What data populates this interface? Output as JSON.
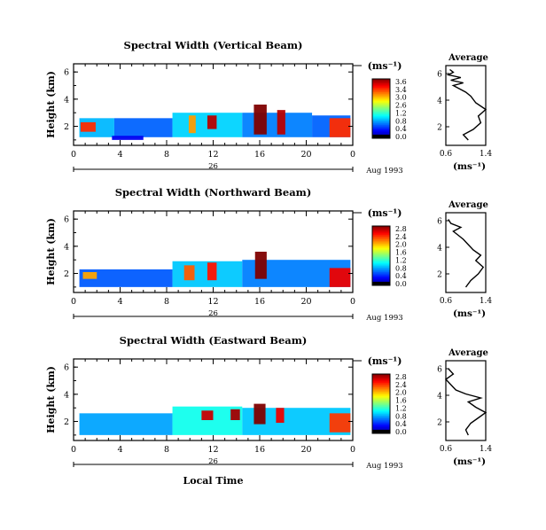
{
  "chart_data": [
    {
      "type": "heatmap",
      "title": "Spectral Width (Vertical Beam)",
      "ylabel": "Height (km)",
      "xlabel": "",
      "x_ticks": [
        "0",
        "4",
        "8",
        "12",
        "16",
        "20",
        "0"
      ],
      "xlim": [
        0,
        24
      ],
      "ylim": [
        0.6,
        6.6
      ],
      "y_ticks": [
        "2",
        "4",
        "6"
      ],
      "date_sub": "26",
      "date_label": "Aug 1993",
      "colorbar": {
        "unit": "(ms⁻¹)",
        "ticks": [
          "3.6",
          "3.4",
          "3.0",
          "2.6",
          "1.2",
          "0.8",
          "0.4",
          "0.0"
        ],
        "range": [
          0.0,
          3.6
        ]
      },
      "cells": [
        {
          "x0": 0.5,
          "x1": 3.5,
          "y0": 1.2,
          "y1": 2.6,
          "v": 1.1
        },
        {
          "x0": 3.5,
          "x1": 8.5,
          "y0": 1.2,
          "y1": 2.6,
          "v": 0.8
        },
        {
          "x0": 8.5,
          "x1": 14.5,
          "y0": 1.2,
          "y1": 3.0,
          "v": 1.2
        },
        {
          "x0": 14.5,
          "x1": 20.5,
          "y0": 1.2,
          "y1": 3.0,
          "v": 0.9
        },
        {
          "x0": 20.5,
          "x1": 23.8,
          "y0": 1.2,
          "y1": 2.8,
          "v": 0.8
        },
        {
          "x0": 0.6,
          "x1": 1.9,
          "y0": 1.6,
          "y1": 2.3,
          "v": 3.0
        },
        {
          "x0": 9.9,
          "x1": 10.5,
          "y0": 1.5,
          "y1": 2.8,
          "v": 2.6
        },
        {
          "x0": 11.5,
          "x1": 12.3,
          "y0": 1.8,
          "y1": 2.8,
          "v": 3.4
        },
        {
          "x0": 15.5,
          "x1": 16.6,
          "y0": 1.4,
          "y1": 3.6,
          "v": 3.6
        },
        {
          "x0": 17.5,
          "x1": 18.2,
          "y0": 1.4,
          "y1": 3.2,
          "v": 3.4
        },
        {
          "x0": 22.0,
          "x1": 23.8,
          "y0": 1.2,
          "y1": 2.6,
          "v": 3.0
        },
        {
          "x0": 3.3,
          "x1": 6.0,
          "y0": 1.0,
          "y1": 1.3,
          "v": 0.4
        }
      ],
      "profile": {
        "title": "Average",
        "xlabel": "(ms⁻¹)",
        "x_ticks": [
          "0.6",
          "1.4"
        ],
        "xlim": [
          0.6,
          1.4
        ],
        "y_ticks": [
          "2",
          "4",
          "6"
        ],
        "ylim": [
          0.6,
          6.6
        ],
        "series": [
          {
            "x": [
              1.05,
              0.95,
              1.15,
              1.3,
              1.25,
              1.4,
              1.2,
              1.1,
              1.0,
              0.85,
              0.75,
              0.95,
              0.7,
              0.9,
              0.65,
              0.75,
              0.68
            ],
            "y": [
              1.0,
              1.4,
              1.8,
              2.3,
              2.8,
              3.3,
              3.8,
              4.3,
              4.6,
              4.9,
              5.1,
              5.3,
              5.5,
              5.7,
              5.9,
              6.1,
              6.3
            ]
          }
        ]
      }
    },
    {
      "type": "heatmap",
      "title": "Spectral Width (Northward Beam)",
      "ylabel": "Height (km)",
      "xlabel": "",
      "x_ticks": [
        "0",
        "4",
        "8",
        "12",
        "16",
        "20",
        "0"
      ],
      "xlim": [
        0,
        24
      ],
      "ylim": [
        0.6,
        6.6
      ],
      "y_ticks": [
        "2",
        "4",
        "6"
      ],
      "date_sub": "26",
      "date_label": "Aug 1993",
      "colorbar": {
        "unit": "(ms⁻¹)",
        "ticks": [
          "2.8",
          "2.4",
          "2.0",
          "1.6",
          "1.2",
          "0.8",
          "0.4",
          "0.0"
        ],
        "range": [
          0.0,
          2.8
        ]
      },
      "cells": [
        {
          "x0": 0.5,
          "x1": 8.5,
          "y0": 1.0,
          "y1": 2.3,
          "v": 0.6
        },
        {
          "x0": 8.5,
          "x1": 14.5,
          "y0": 1.0,
          "y1": 2.9,
          "v": 0.9
        },
        {
          "x0": 14.5,
          "x1": 23.8,
          "y0": 1.0,
          "y1": 3.0,
          "v": 0.7
        },
        {
          "x0": 9.5,
          "x1": 10.4,
          "y0": 1.5,
          "y1": 2.6,
          "v": 2.2
        },
        {
          "x0": 11.5,
          "x1": 12.3,
          "y0": 1.5,
          "y1": 2.8,
          "v": 2.4
        },
        {
          "x0": 15.6,
          "x1": 16.6,
          "y0": 1.6,
          "y1": 3.6,
          "v": 2.8
        },
        {
          "x0": 22.0,
          "x1": 23.8,
          "y0": 1.0,
          "y1": 2.4,
          "v": 2.5
        },
        {
          "x0": 0.8,
          "x1": 2.0,
          "y0": 1.6,
          "y1": 2.1,
          "v": 2.0
        }
      ],
      "profile": {
        "title": "Average",
        "xlabel": "(ms⁻¹)",
        "x_ticks": [
          "0.6",
          "1.4"
        ],
        "xlim": [
          0.6,
          1.4
        ],
        "y_ticks": [
          "2",
          "4",
          "6"
        ],
        "ylim": [
          0.6,
          6.6
        ],
        "series": [
          {
            "x": [
              1.0,
              1.1,
              1.25,
              1.35,
              1.2,
              1.3,
              1.15,
              1.05,
              0.95,
              0.85,
              0.75,
              0.9,
              0.7,
              0.65
            ],
            "y": [
              1.0,
              1.5,
              2.0,
              2.5,
              3.0,
              3.4,
              3.8,
              4.2,
              4.6,
              4.9,
              5.2,
              5.5,
              5.8,
              6.1
            ]
          }
        ]
      }
    },
    {
      "type": "heatmap",
      "title": "Spectral Width (Eastward Beam)",
      "ylabel": "Height (km)",
      "xlabel": "Local Time",
      "x_ticks": [
        "0",
        "4",
        "8",
        "12",
        "16",
        "20",
        "0"
      ],
      "xlim": [
        0,
        24
      ],
      "ylim": [
        0.6,
        6.6
      ],
      "y_ticks": [
        "2",
        "4",
        "6"
      ],
      "date_sub": "26",
      "date_label": "Aug 1993",
      "colorbar": {
        "unit": "(ms⁻¹)",
        "ticks": [
          "2.8",
          "2.4",
          "2.0",
          "1.6",
          "1.2",
          "0.8",
          "0.4",
          "0.0"
        ],
        "range": [
          0.0,
          2.8
        ]
      },
      "cells": [
        {
          "x0": 0.5,
          "x1": 8.5,
          "y0": 1.0,
          "y1": 2.6,
          "v": 0.8
        },
        {
          "x0": 8.5,
          "x1": 14.5,
          "y0": 1.0,
          "y1": 3.1,
          "v": 1.1
        },
        {
          "x0": 14.5,
          "x1": 23.8,
          "y0": 1.0,
          "y1": 3.0,
          "v": 0.9
        },
        {
          "x0": 11.0,
          "x1": 12.0,
          "y0": 2.1,
          "y1": 2.8,
          "v": 2.6
        },
        {
          "x0": 13.5,
          "x1": 14.3,
          "y0": 2.1,
          "y1": 2.9,
          "v": 2.7
        },
        {
          "x0": 15.5,
          "x1": 16.5,
          "y0": 1.8,
          "y1": 3.3,
          "v": 2.8
        },
        {
          "x0": 17.4,
          "x1": 18.1,
          "y0": 1.9,
          "y1": 3.0,
          "v": 2.5
        },
        {
          "x0": 22.0,
          "x1": 23.8,
          "y0": 1.2,
          "y1": 2.6,
          "v": 2.3
        }
      ],
      "profile": {
        "title": "Average",
        "xlabel": "(ms⁻¹)",
        "x_ticks": [
          "0.6",
          "1.4"
        ],
        "xlim": [
          0.6,
          1.4
        ],
        "y_ticks": [
          "2",
          "4",
          "6"
        ],
        "ylim": [
          0.6,
          6.6
        ],
        "series": [
          {
            "x": [
              1.05,
              1.0,
              1.1,
              1.25,
              1.4,
              1.2,
              1.05,
              1.3,
              1.0,
              0.8,
              0.7,
              0.6,
              0.75,
              0.65
            ],
            "y": [
              1.0,
              1.4,
              1.9,
              2.3,
              2.7,
              3.1,
              3.5,
              3.8,
              4.1,
              4.4,
              4.8,
              5.2,
              5.6,
              6.0
            ]
          }
        ]
      }
    }
  ]
}
